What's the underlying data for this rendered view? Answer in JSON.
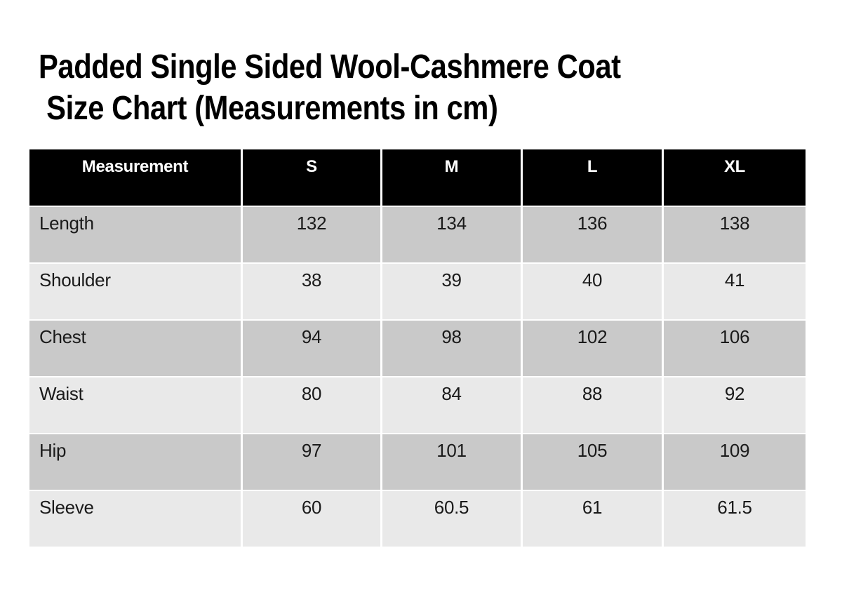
{
  "title": {
    "line1": "Padded Single Sided Wool-Cashmere Coat",
    "line2": " Size Chart (Measurements in cm)"
  },
  "chart_data": {
    "type": "table",
    "title": "Padded Single Sided Wool-Cashmere Coat Size Chart",
    "unit": "cm",
    "columns": [
      "Measurement",
      "S",
      "M",
      "L",
      "XL"
    ],
    "rows": [
      {
        "label": "Length",
        "values": [
          "132",
          "134",
          "136",
          "138"
        ]
      },
      {
        "label": "Shoulder",
        "values": [
          "38",
          "39",
          "40",
          "41"
        ]
      },
      {
        "label": "Chest",
        "values": [
          "94",
          "98",
          "102",
          "106"
        ]
      },
      {
        "label": "Waist",
        "values": [
          "80",
          "84",
          "88",
          "92"
        ]
      },
      {
        "label": "Hip",
        "values": [
          "97",
          "101",
          "105",
          "109"
        ]
      },
      {
        "label": "Sleeve",
        "values": [
          "60",
          "60.5",
          "61",
          "61.5"
        ]
      }
    ]
  },
  "colors": {
    "page_bg": "#ffffff",
    "title_text": "#000000",
    "header_bg": "#000000",
    "header_text": "#ffffff",
    "row_band_dark": "#c9c9c9",
    "row_band_light": "#e9e9e9",
    "cell_text": "#1a1a1a",
    "separator": "#ffffff"
  }
}
